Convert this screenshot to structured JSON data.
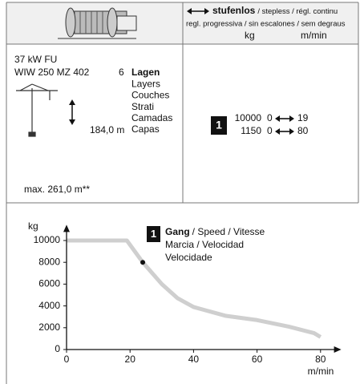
{
  "header": {
    "speed_mode": "stufenlos",
    "speed_mode_translations": "/ stepless / régl. continu",
    "speed_mode_line2": "regl. progressiva / sin escalones / sem degraus",
    "load_unit": "kg",
    "speed_unit": "m/min"
  },
  "drive": {
    "power": "37 kW FU",
    "model": "WIW 250 MZ 402",
    "layers_count": 6,
    "layers_labels": [
      "Lagen",
      "Layers",
      "Couches",
      "Strati",
      "Camadas",
      "Capas"
    ],
    "rope_length": "184,0 m",
    "max_rope_length": "max. 261,0 m**"
  },
  "gears": [
    {
      "badge": "1",
      "rows": [
        {
          "load": 10000,
          "speed_min": 0,
          "speed_max": 19
        },
        {
          "load": 1150,
          "speed_min": 0,
          "speed_max": 80
        }
      ]
    }
  ],
  "chart_data": {
    "type": "line",
    "y_label": "kg",
    "x_label": "m/min",
    "legend": {
      "badge": "1",
      "title": "Gang",
      "lines": [
        "/ Speed / Vitesse",
        "Marcia / Velocidad",
        "Velocidade"
      ]
    },
    "series": [
      {
        "color": "#cfcfcf",
        "x": [
          0,
          19,
          24,
          30,
          35,
          40,
          50,
          60,
          70,
          78,
          80
        ],
        "values": [
          10000,
          10000,
          8000,
          6000,
          4700,
          3900,
          3100,
          2700,
          2100,
          1500,
          1150
        ]
      }
    ],
    "xlim": [
      0,
      85
    ],
    "ylim": [
      0,
      11000
    ],
    "xticks": [
      0,
      20,
      40,
      60,
      80
    ],
    "yticks": [
      0,
      2000,
      4000,
      6000,
      8000,
      10000
    ]
  }
}
